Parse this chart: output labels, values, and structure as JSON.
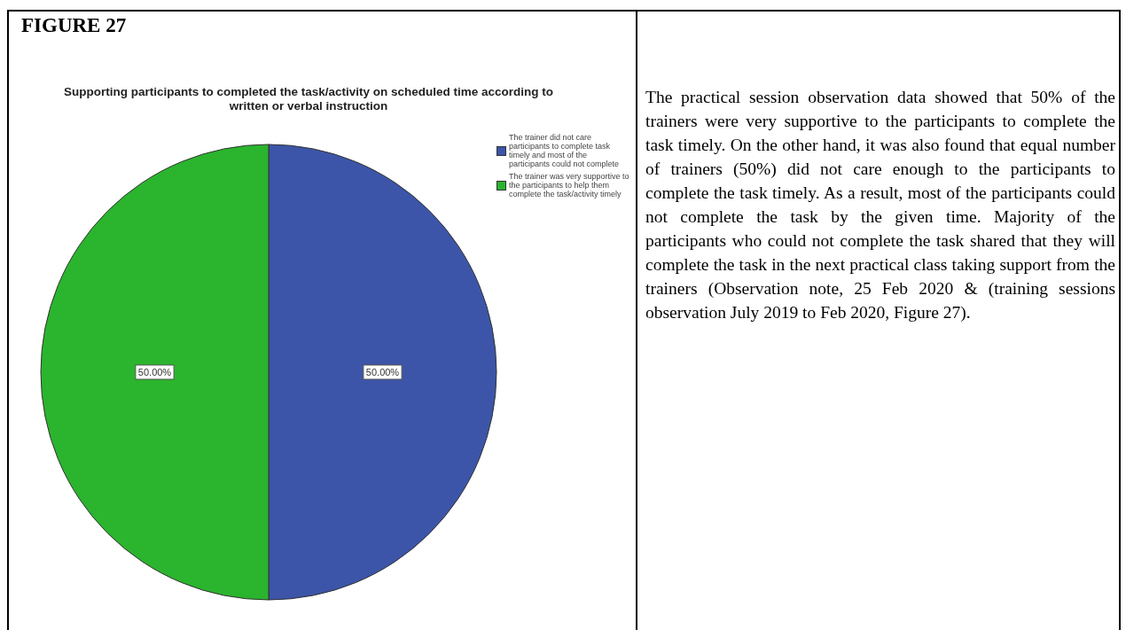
{
  "chart_data": {
    "type": "pie",
    "title": "Supporting participants to completed the task/activity on scheduled time according to written or verbal instruction",
    "categories": [
      "The trainer did not care participants to complete task timely and most of the participants could not complete",
      "The trainer was very supportive to the participants to help them complete the task/activity timely"
    ],
    "values": [
      50,
      50
    ],
    "colors": [
      "#3c55a8",
      "#2bb42e"
    ],
    "value_labels": [
      "50.00%",
      "50.00%"
    ],
    "legend": "right",
    "annotations": [
      "FIGURE 27",
      "The practical session observation data showed that 50% of the trainers were very supportive to the participants to complete the task timely. On the other hand, it was also found that equal number of trainers (50%) did not care enough to the participants to complete the task timely. As a result, most of the participants could not complete the task by the given time. Majority of the participants who could not complete the task shared that they will complete the task in the next practical class taking support from the trainers (Observation note, 25 Feb 2020 & (training sessions observation July 2019 to Feb 2020, Figure 27)."
    ]
  }
}
